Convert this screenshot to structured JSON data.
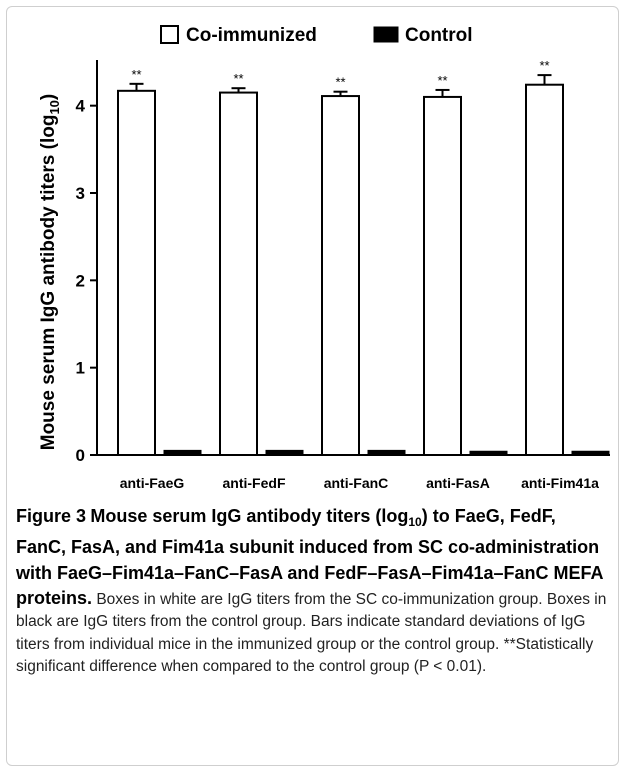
{
  "chart_data": {
    "type": "bar",
    "categories": [
      "anti-FaeG",
      "anti-FedF",
      "anti-FanC",
      "anti-FasA",
      "anti-Fim41a"
    ],
    "series": [
      {
        "name": "Co-immunized",
        "values": [
          4.17,
          4.15,
          4.11,
          4.1,
          4.24
        ],
        "errors": [
          0.08,
          0.05,
          0.05,
          0.08,
          0.11
        ],
        "color": "#ffffff"
      },
      {
        "name": "Control",
        "values": [
          0.03,
          0.03,
          0.03,
          0.02,
          0.02
        ],
        "errors": [
          0,
          0,
          0,
          0,
          0
        ],
        "color": "#000000"
      }
    ],
    "annotations": [
      "**",
      "**",
      "**",
      "**",
      "**"
    ],
    "title": "",
    "xlabel": "",
    "ylabel": "Mouse serum IgG antibody titers (log 10)",
    "ylabel_main": "Mouse serum IgG antibody titers (log",
    "ylabel_sub": "10",
    "ylabel_close": ")",
    "ylim": [
      0,
      4.5
    ],
    "yticks": [
      0,
      1,
      2,
      3,
      4
    ],
    "ytick_labels": [
      "0",
      "1",
      "2",
      "3",
      "4"
    ],
    "legend": {
      "placement": "top-center",
      "entries": [
        "Co-immunized",
        "Control"
      ]
    },
    "grid": false
  },
  "caption": {
    "figure_label": "Figure 3",
    "title_part1": "Mouse serum IgG antibody titers (log",
    "title_sub": "10",
    "title_part2": ") to FaeG, FedF, FanC, FasA, and Fim41a subunit induced from SC co-administration with FaeG–Fim41a–FanC–FasA and FedF–FasA–Fim41a–FanC MEFA proteins.",
    "body": "Boxes in white are IgG titers from the SC co-immunization group. Boxes in black are IgG titers from the control group. Bars indicate standard deviations of IgG titers from individual mice in the immunized group or the control group. **Statistically significant difference when compared to the control group (P < 0.01)."
  }
}
